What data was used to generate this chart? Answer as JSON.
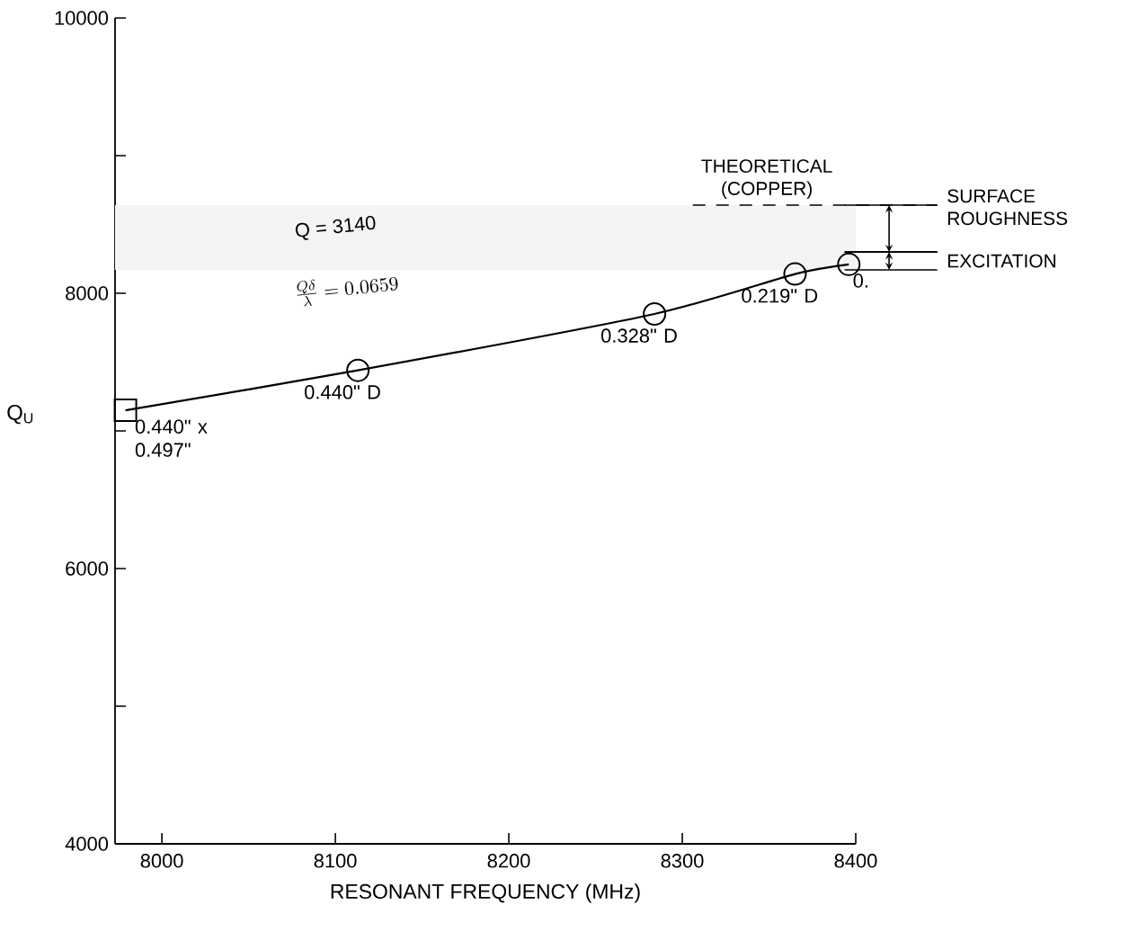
{
  "chart_data": {
    "type": "line",
    "xlabel": "RESONANT FREQUENCY (MHz)",
    "ylabel": "Q$_{U}$",
    "xlim": [
      7973,
      8400
    ],
    "ylim": [
      4000,
      10000
    ],
    "xticks": [
      8000,
      8100,
      8200,
      8300,
      8400
    ],
    "yticks": [
      4000,
      {
        "value": 5000,
        "label": null
      },
      6000,
      {
        "value": 7000,
        "label": null
      },
      8000,
      {
        "value": 9000,
        "label": null
      },
      10000
    ],
    "series": [
      {
        "type": "line",
        "marker": "none",
        "color": "#000000",
        "x": [
          7979,
          8113,
          8284,
          8365,
          8396
        ],
        "values": [
          7150,
          7440,
          7850,
          8140,
          8210
        ]
      },
      {
        "type": "scatter",
        "marker": "square",
        "color": "#000000",
        "x": [
          7979
        ],
        "values": [
          7150
        ]
      },
      {
        "type": "scatter",
        "marker": "circle",
        "color": "#000000",
        "x": [
          8113,
          8284,
          8365,
          8396
        ],
        "values": [
          7440,
          7850,
          8140,
          8210
        ]
      }
    ],
    "ref_lines": [
      {
        "axis": "y",
        "value": 8640,
        "label": "THEORETICAL (COPPER)",
        "line_style": "dashed"
      }
    ],
    "bands": [
      {
        "axis": "y",
        "from": 8300,
        "to": 8640,
        "label": "SURFACE ROUGHNESS"
      },
      {
        "axis": "y",
        "from": 8170,
        "to": 8300,
        "label": "EXCITATION"
      }
    ],
    "annotations": [
      "Q = 3140",
      "\\frac{Q\\delta}{\\lambda} = 0.0659",
      {
        "text": "0.440\" x 0.497\"",
        "x": 7979,
        "y": 7150
      },
      {
        "text": "0.440\" D",
        "x": 8113,
        "y": 7440
      },
      {
        "text": "0.328\" D",
        "x": 8284,
        "y": 7850
      },
      {
        "text": "0.219\" D",
        "x": 8365,
        "y": 8140
      },
      {
        "text": "0.",
        "x": 8396,
        "y": 8210
      }
    ]
  }
}
